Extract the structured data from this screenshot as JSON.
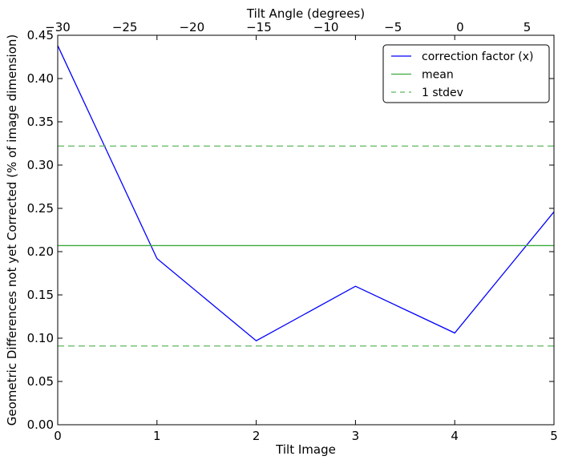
{
  "chart_data": {
    "type": "line",
    "title": "",
    "xlabel": "Tilt Image",
    "ylabel": "Geometric Differences not yet Corrected (% of image dimension)",
    "x2label": "Tilt Angle (degrees)",
    "xlim": [
      0,
      5
    ],
    "ylim": [
      0,
      0.45
    ],
    "x2lim": [
      -30,
      7
    ],
    "xticks": [
      "0",
      "1",
      "2",
      "3",
      "4",
      "5"
    ],
    "yticks": [
      "0.00",
      "0.05",
      "0.10",
      "0.15",
      "0.20",
      "0.25",
      "0.30",
      "0.35",
      "0.40",
      "0.45"
    ],
    "x2ticks": [
      "−30",
      "−25",
      "−20",
      "−15",
      "−10",
      "−5",
      "0",
      "5"
    ],
    "grid": false,
    "legend_position": "top-right",
    "series": [
      {
        "name": "correction factor (x)",
        "color": "#0000ff",
        "style": "solid",
        "x": [
          0,
          1,
          2,
          3,
          4,
          5
        ],
        "values": [
          0.438,
          0.192,
          0.097,
          0.16,
          0.106,
          0.246
        ]
      },
      {
        "name": "mean",
        "color": "#3caa3c",
        "style": "solid",
        "hline": 0.207
      },
      {
        "name": "1 stdev",
        "color": "#5cb85c",
        "style": "dashed",
        "hlines": [
          0.322,
          0.091
        ]
      }
    ]
  }
}
